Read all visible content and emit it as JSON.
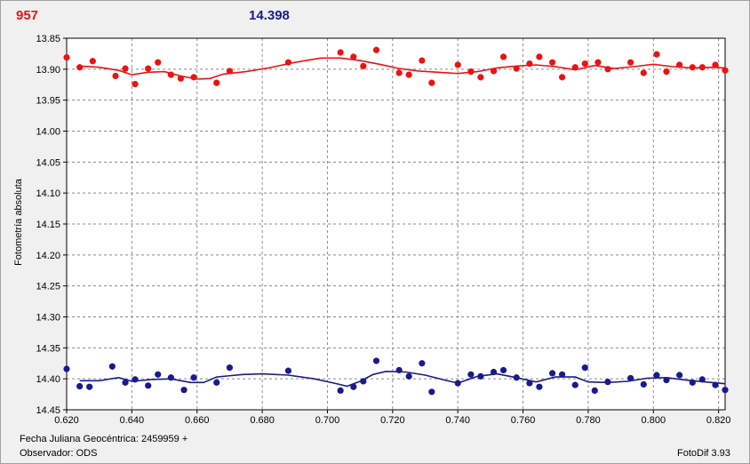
{
  "header": {
    "left_value": "957",
    "right_value": "14.398",
    "left_color": "#ee1111",
    "right_color": "#1a1a8c"
  },
  "footer": {
    "date_label": "Fecha Juliana Geocéntrica: 2459959 +",
    "observer_label": "Observador: ODS",
    "software": "FotoDif 3.93"
  },
  "chart_data": {
    "type": "scatter",
    "ylabel": "Fotometría absoluta",
    "xlabel": "",
    "xlim": [
      0.62,
      0.822
    ],
    "ylim": [
      13.85,
      14.45
    ],
    "y_reversed": true,
    "grid": true,
    "x_ticks": [
      "0.620",
      "0.640",
      "0.660",
      "0.680",
      "0.700",
      "0.720",
      "0.740",
      "0.760",
      "0.780",
      "0.800",
      "0.820"
    ],
    "y_ticks": [
      "13.85",
      "13.90",
      "13.95",
      "14.00",
      "14.05",
      "14.10",
      "14.15",
      "14.20",
      "14.25",
      "14.30",
      "14.35",
      "14.40",
      "14.45"
    ],
    "series": [
      {
        "color": "#ee1111",
        "points": [
          [
            0.62,
            13.881
          ],
          [
            0.624,
            13.897
          ],
          [
            0.628,
            13.887
          ],
          [
            0.635,
            13.911
          ],
          [
            0.638,
            13.899
          ],
          [
            0.641,
            13.924
          ],
          [
            0.645,
            13.899
          ],
          [
            0.648,
            13.889
          ],
          [
            0.652,
            13.909
          ],
          [
            0.655,
            13.915
          ],
          [
            0.659,
            13.913
          ],
          [
            0.666,
            13.922
          ],
          [
            0.67,
            13.903
          ],
          [
            0.688,
            13.889
          ],
          [
            0.704,
            13.873
          ],
          [
            0.708,
            13.88
          ],
          [
            0.711,
            13.895
          ],
          [
            0.715,
            13.869
          ],
          [
            0.722,
            13.906
          ],
          [
            0.725,
            13.909
          ],
          [
            0.729,
            13.886
          ],
          [
            0.732,
            13.922
          ],
          [
            0.74,
            13.893
          ],
          [
            0.744,
            13.904
          ],
          [
            0.747,
            13.913
          ],
          [
            0.751,
            13.903
          ],
          [
            0.754,
            13.88
          ],
          [
            0.758,
            13.899
          ],
          [
            0.762,
            13.891
          ],
          [
            0.765,
            13.88
          ],
          [
            0.769,
            13.889
          ],
          [
            0.772,
            13.913
          ],
          [
            0.776,
            13.897
          ],
          [
            0.779,
            13.891
          ],
          [
            0.783,
            13.889
          ],
          [
            0.786,
            13.9
          ],
          [
            0.793,
            13.889
          ],
          [
            0.797,
            13.906
          ],
          [
            0.801,
            13.876
          ],
          [
            0.804,
            13.904
          ],
          [
            0.808,
            13.893
          ],
          [
            0.812,
            13.897
          ],
          [
            0.815,
            13.897
          ],
          [
            0.819,
            13.893
          ],
          [
            0.822,
            13.902
          ]
        ],
        "fit": [
          [
            0.624,
            13.895
          ],
          [
            0.63,
            13.897
          ],
          [
            0.636,
            13.902
          ],
          [
            0.64,
            13.909
          ],
          [
            0.645,
            13.905
          ],
          [
            0.65,
            13.904
          ],
          [
            0.655,
            13.911
          ],
          [
            0.66,
            13.916
          ],
          [
            0.664,
            13.915
          ],
          [
            0.668,
            13.908
          ],
          [
            0.675,
            13.904
          ],
          [
            0.682,
            13.898
          ],
          [
            0.69,
            13.889
          ],
          [
            0.698,
            13.882
          ],
          [
            0.704,
            13.882
          ],
          [
            0.71,
            13.886
          ],
          [
            0.716,
            13.892
          ],
          [
            0.722,
            13.899
          ],
          [
            0.728,
            13.903
          ],
          [
            0.734,
            13.905
          ],
          [
            0.74,
            13.907
          ],
          [
            0.746,
            13.904
          ],
          [
            0.752,
            13.898
          ],
          [
            0.758,
            13.895
          ],
          [
            0.764,
            13.893
          ],
          [
            0.77,
            13.896
          ],
          [
            0.776,
            13.901
          ],
          [
            0.782,
            13.894
          ],
          [
            0.788,
            13.899
          ],
          [
            0.794,
            13.896
          ],
          [
            0.8,
            13.892
          ],
          [
            0.806,
            13.896
          ],
          [
            0.812,
            13.898
          ],
          [
            0.818,
            13.897
          ],
          [
            0.822,
            13.898
          ]
        ]
      },
      {
        "color": "#1a1a8c",
        "points": [
          [
            0.62,
            14.384
          ],
          [
            0.624,
            14.412
          ],
          [
            0.627,
            14.413
          ],
          [
            0.634,
            14.38
          ],
          [
            0.638,
            14.406
          ],
          [
            0.641,
            14.401
          ],
          [
            0.645,
            14.411
          ],
          [
            0.648,
            14.393
          ],
          [
            0.652,
            14.398
          ],
          [
            0.656,
            14.418
          ],
          [
            0.659,
            14.398
          ],
          [
            0.666,
            14.406
          ],
          [
            0.67,
            14.382
          ],
          [
            0.688,
            14.387
          ],
          [
            0.704,
            14.419
          ],
          [
            0.708,
            14.413
          ],
          [
            0.711,
            14.404
          ],
          [
            0.715,
            14.371
          ],
          [
            0.722,
            14.386
          ],
          [
            0.725,
            14.396
          ],
          [
            0.729,
            14.375
          ],
          [
            0.732,
            14.421
          ],
          [
            0.74,
            14.407
          ],
          [
            0.744,
            14.393
          ],
          [
            0.747,
            14.396
          ],
          [
            0.751,
            14.389
          ],
          [
            0.754,
            14.386
          ],
          [
            0.758,
            14.398
          ],
          [
            0.762,
            14.407
          ],
          [
            0.765,
            14.413
          ],
          [
            0.769,
            14.391
          ],
          [
            0.772,
            14.393
          ],
          [
            0.776,
            14.41
          ],
          [
            0.779,
            14.382
          ],
          [
            0.782,
            14.419
          ],
          [
            0.786,
            14.405
          ],
          [
            0.793,
            14.399
          ],
          [
            0.797,
            14.409
          ],
          [
            0.801,
            14.394
          ],
          [
            0.804,
            14.402
          ],
          [
            0.808,
            14.394
          ],
          [
            0.812,
            14.406
          ],
          [
            0.815,
            14.401
          ],
          [
            0.819,
            14.41
          ],
          [
            0.822,
            14.418
          ]
        ],
        "fit": [
          [
            0.624,
            14.403
          ],
          [
            0.63,
            14.403
          ],
          [
            0.636,
            14.398
          ],
          [
            0.64,
            14.404
          ],
          [
            0.646,
            14.401
          ],
          [
            0.652,
            14.4
          ],
          [
            0.658,
            14.406
          ],
          [
            0.662,
            14.406
          ],
          [
            0.666,
            14.397
          ],
          [
            0.674,
            14.393
          ],
          [
            0.68,
            14.392
          ],
          [
            0.688,
            14.394
          ],
          [
            0.696,
            14.4
          ],
          [
            0.702,
            14.407
          ],
          [
            0.706,
            14.412
          ],
          [
            0.71,
            14.404
          ],
          [
            0.714,
            14.393
          ],
          [
            0.718,
            14.388
          ],
          [
            0.724,
            14.389
          ],
          [
            0.73,
            14.394
          ],
          [
            0.736,
            14.402
          ],
          [
            0.74,
            14.407
          ],
          [
            0.746,
            14.396
          ],
          [
            0.752,
            14.392
          ],
          [
            0.758,
            14.398
          ],
          [
            0.764,
            14.405
          ],
          [
            0.77,
            14.397
          ],
          [
            0.776,
            14.397
          ],
          [
            0.78,
            14.405
          ],
          [
            0.786,
            14.406
          ],
          [
            0.792,
            14.404
          ],
          [
            0.798,
            14.399
          ],
          [
            0.804,
            14.398
          ],
          [
            0.81,
            14.402
          ],
          [
            0.816,
            14.405
          ],
          [
            0.822,
            14.408
          ]
        ]
      }
    ]
  }
}
